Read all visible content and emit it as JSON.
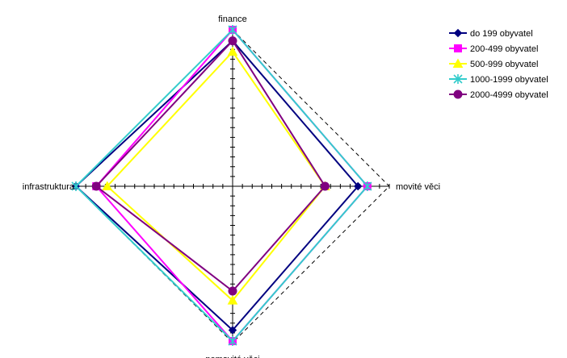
{
  "chart_data": {
    "type": "radar",
    "axes": [
      "finance",
      "movité věci",
      "nemovité věci",
      "infrastruktura"
    ],
    "range": [
      0,
      1
    ],
    "frame": "dashed",
    "legend_position": "top-right",
    "series": [
      {
        "name": "do 199 obyvatel",
        "color": "#000080",
        "marker": "diamond",
        "values": [
          0.93,
          0.8,
          0.92,
          1.0
        ]
      },
      {
        "name": "200-499 obyvatel",
        "color": "#FF00FF",
        "marker": "square",
        "values": [
          1.0,
          0.86,
          0.99,
          0.87
        ]
      },
      {
        "name": "500-999 obyvatel",
        "color": "#FFFF00",
        "marker": "triangle",
        "values": [
          0.86,
          0.59,
          0.73,
          0.8
        ]
      },
      {
        "name": "1000-1999 obyvatel",
        "color": "#33CCCC",
        "marker": "asterisk",
        "values": [
          1.0,
          0.86,
          0.99,
          1.0
        ]
      },
      {
        "name": "2000-4999 obyvatel",
        "color": "#800080",
        "marker": "circle",
        "values": [
          0.93,
          0.59,
          0.67,
          0.87
        ]
      }
    ]
  }
}
